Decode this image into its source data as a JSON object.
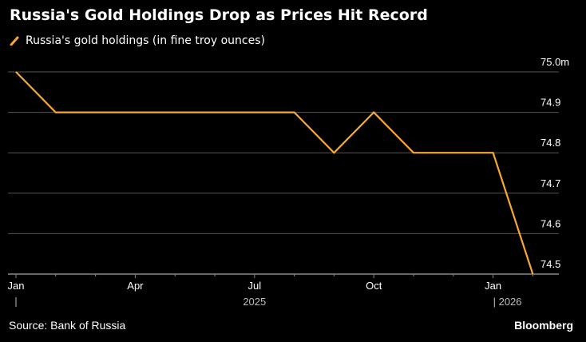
{
  "title": "Russia's Gold Holdings Drop as Prices Hit Record",
  "source": "Source: Bank of Russia",
  "brand": "Bloomberg",
  "colors": {
    "line": "#f7a833",
    "grid": "#555555",
    "background": "#000000"
  },
  "chart_data": {
    "type": "line",
    "title": "Russia's Gold Holdings Drop as Prices Hit Record",
    "legend_position": "top-left",
    "grid": true,
    "series": [
      {
        "name": "Russia's gold holdings (in fine troy ounces)",
        "x": [
          "2025-01",
          "2025-02",
          "2025-03",
          "2025-04",
          "2025-05",
          "2025-06",
          "2025-07",
          "2025-08",
          "2025-09",
          "2025-10",
          "2025-11",
          "2025-12",
          "2026-01",
          "2026-02"
        ],
        "values": [
          75.0,
          74.9,
          74.9,
          74.9,
          74.9,
          74.9,
          74.9,
          74.9,
          74.8,
          74.9,
          74.8,
          74.8,
          74.8,
          74.5
        ]
      }
    ],
    "ylim": [
      74.5,
      75.0
    ],
    "yticks": [
      75.0,
      74.9,
      74.8,
      74.7,
      74.6,
      74.5
    ],
    "ytick_labels": [
      "75.0m",
      "74.9",
      "74.8",
      "74.7",
      "74.6",
      "74.5"
    ],
    "xticks": [
      {
        "x": "2025-01",
        "label": "Jan"
      },
      {
        "x": "2025-04",
        "label": "Apr"
      },
      {
        "x": "2025-07",
        "label": "Jul"
      },
      {
        "x": "2025-10",
        "label": "Oct"
      },
      {
        "x": "2026-01",
        "label": "Jan"
      }
    ],
    "year_labels": [
      {
        "x": "2025-07",
        "label": "2025"
      },
      {
        "x": "2026-01",
        "label": "| 2026"
      }
    ]
  }
}
